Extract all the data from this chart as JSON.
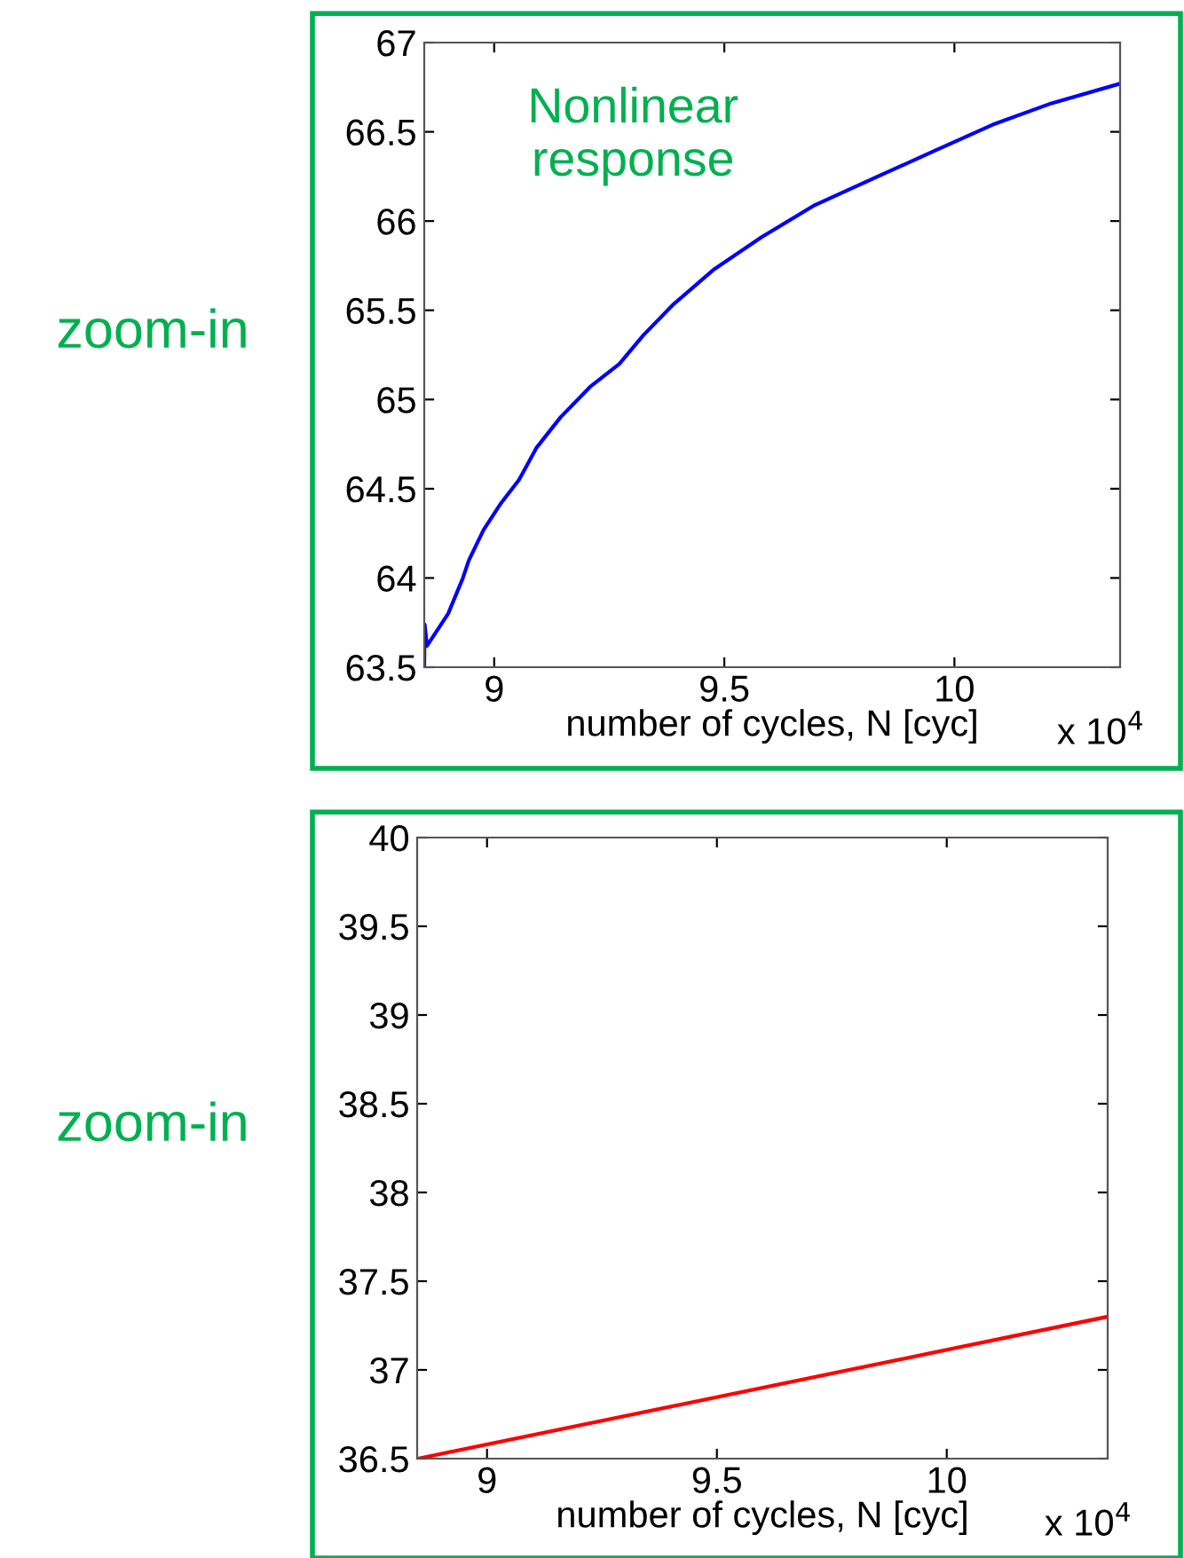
{
  "chart_data": [
    {
      "type": "line",
      "xlabel": "number of cycles, N [cyc]",
      "annotations": [
        "zoom-in",
        "x 10$^{4}$",
        "Nonlinear response"
      ],
      "xlim": [
        8.848,
        10.36
      ],
      "xticks": [
        9,
        9.5,
        10
      ],
      "ylim": [
        63.5,
        67
      ],
      "yticks": [
        63.5,
        64,
        64.5,
        65,
        65.5,
        66,
        66.5,
        67
      ],
      "grid": false,
      "legend": false,
      "series": [
        {
          "color": "#0000ff",
          "x": [
            8.848,
            8.849,
            8.854,
            8.9,
            8.932,
            8.945,
            8.977,
            9.015,
            9.054,
            9.092,
            9.144,
            9.208,
            9.272,
            9.324,
            9.388,
            9.478,
            9.581,
            9.697,
            9.825,
            9.954,
            10.083,
            10.211,
            10.36
          ],
          "values": [
            63.51,
            63.74,
            63.62,
            63.8,
            64.0,
            64.1,
            64.27,
            64.42,
            64.55,
            64.73,
            64.9,
            65.07,
            65.2,
            65.36,
            65.53,
            65.73,
            65.91,
            66.09,
            66.24,
            66.39,
            66.54,
            66.66,
            66.77
          ]
        }
      ]
    },
    {
      "type": "line",
      "xlabel": "number of cycles, N [cyc]",
      "annotations": [
        "zoom-in",
        "x 10$^{4}$"
      ],
      "xlim": [
        8.848,
        10.35
      ],
      "xticks": [
        9,
        9.5,
        10
      ],
      "ylim": [
        36.5,
        40
      ],
      "yticks": [
        36.5,
        37,
        37.5,
        38,
        38.5,
        39,
        39.5,
        40
      ],
      "grid": false,
      "legend": false,
      "series": [
        {
          "color": "#ff0000",
          "x": [
            8.85,
            10.35
          ],
          "values": [
            36.5,
            37.3
          ]
        }
      ]
    }
  ]
}
